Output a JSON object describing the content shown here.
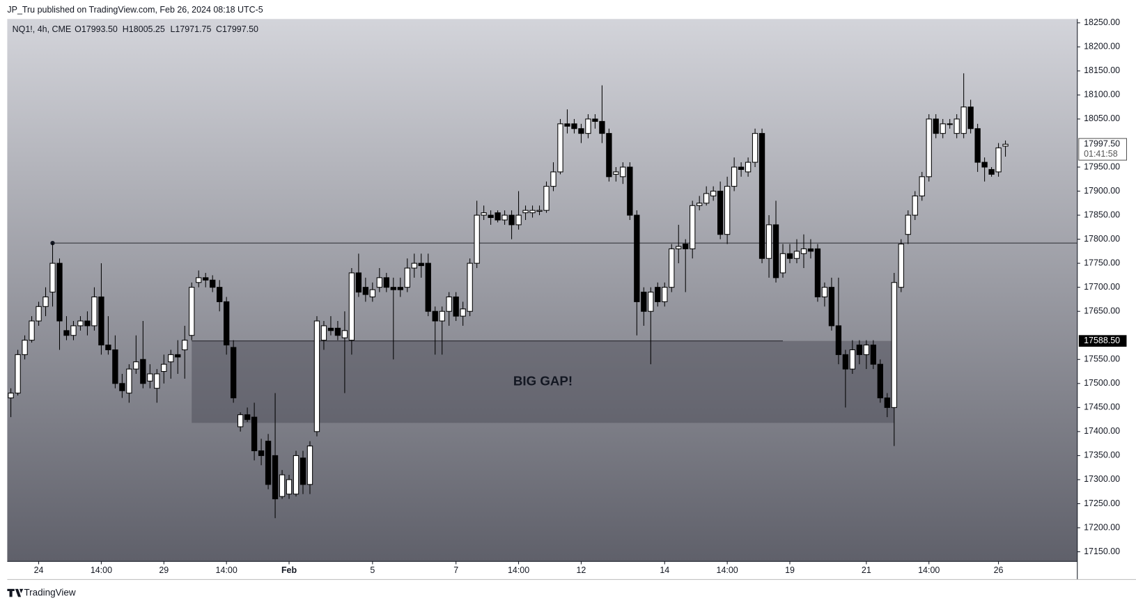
{
  "header": "JP_Tru published on TradingView.com, Feb 26, 2024 08:18 UTC-5",
  "footer": "TradingView",
  "chart_data": {
    "type": "candlestick",
    "legend": {
      "symbol": "NQ1!, 4h, CME",
      "open": {
        "value": 17993.5,
        "label": "O17993.50"
      },
      "high": {
        "value": 18005.25,
        "label": "H18005.25"
      },
      "low": {
        "value": 17971.75,
        "label": "L17971.75"
      },
      "close": {
        "value": 17997.5,
        "label": "C17997.50"
      }
    },
    "ohlc": [
      [
        17470,
        17490,
        17430,
        17480
      ],
      [
        17480,
        17570,
        17475,
        17560
      ],
      [
        17560,
        17600,
        17550,
        17590
      ],
      [
        17590,
        17640,
        17585,
        17630
      ],
      [
        17630,
        17670,
        17620,
        17660
      ],
      [
        17660,
        17700,
        17640,
        17680
      ],
      [
        17690,
        17792,
        17660,
        17750
      ],
      [
        17750,
        17760,
        17570,
        17630
      ],
      [
        17610,
        17640,
        17590,
        17600
      ],
      [
        17600,
        17630,
        17590,
        17620
      ],
      [
        17620,
        17640,
        17610,
        17630
      ],
      [
        17630,
        17650,
        17600,
        17620
      ],
      [
        17620,
        17700,
        17610,
        17680
      ],
      [
        17680,
        17750,
        17560,
        17580
      ],
      [
        17580,
        17640,
        17560,
        17570
      ],
      [
        17570,
        17600,
        17490,
        17500
      ],
      [
        17500,
        17520,
        17470,
        17485
      ],
      [
        17480,
        17540,
        17460,
        17530
      ],
      [
        17530,
        17600,
        17520,
        17545
      ],
      [
        17550,
        17630,
        17490,
        17500
      ],
      [
        17505,
        17540,
        17490,
        17520
      ],
      [
        17490,
        17530,
        17460,
        17520
      ],
      [
        17525,
        17560,
        17500,
        17540
      ],
      [
        17545,
        17570,
        17510,
        17560
      ],
      [
        17560,
        17590,
        17520,
        17555
      ],
      [
        17570,
        17620,
        17510,
        17590
      ],
      [
        17600,
        17710,
        17590,
        17700
      ],
      [
        17710,
        17735,
        17700,
        17720
      ],
      [
        17720,
        17730,
        17700,
        17715
      ],
      [
        17715,
        17725,
        17690,
        17700
      ],
      [
        17700,
        17715,
        17650,
        17670
      ],
      [
        17670,
        17680,
        17560,
        17580
      ],
      [
        17575,
        17590,
        17460,
        17470
      ],
      [
        17410,
        17440,
        17400,
        17435
      ],
      [
        17435,
        17450,
        17420,
        17425
      ],
      [
        17430,
        17460,
        17340,
        17360
      ],
      [
        17360,
        17385,
        17330,
        17350
      ],
      [
        17380,
        17395,
        17280,
        17290
      ],
      [
        17350,
        17480,
        17220,
        17260
      ],
      [
        17265,
        17320,
        17260,
        17310
      ],
      [
        17270,
        17310,
        17260,
        17300
      ],
      [
        17270,
        17360,
        17265,
        17350
      ],
      [
        17345,
        17360,
        17270,
        17290
      ],
      [
        17290,
        17380,
        17270,
        17370
      ],
      [
        17400,
        17640,
        17390,
        17630
      ],
      [
        17590,
        17630,
        17570,
        17620
      ],
      [
        17615,
        17640,
        17600,
        17610
      ],
      [
        17615,
        17630,
        17590,
        17600
      ],
      [
        17595,
        17650,
        17480,
        17610
      ],
      [
        17590,
        17740,
        17560,
        17730
      ],
      [
        17730,
        17770,
        17680,
        17690
      ],
      [
        17700,
        17720,
        17670,
        17685
      ],
      [
        17680,
        17710,
        17670,
        17695
      ],
      [
        17700,
        17740,
        17690,
        17720
      ],
      [
        17720,
        17730,
        17690,
        17700
      ],
      [
        17700,
        17720,
        17550,
        17695
      ],
      [
        17700,
        17720,
        17680,
        17695
      ],
      [
        17700,
        17760,
        17690,
        17740
      ],
      [
        17740,
        17770,
        17720,
        17750
      ],
      [
        17750,
        17770,
        17720,
        17745
      ],
      [
        17750,
        17770,
        17640,
        17650
      ],
      [
        17650,
        17660,
        17560,
        17630
      ],
      [
        17630,
        17660,
        17560,
        17650
      ],
      [
        17650,
        17690,
        17620,
        17680
      ],
      [
        17680,
        17690,
        17630,
        17640
      ],
      [
        17640,
        17670,
        17620,
        17655
      ],
      [
        17650,
        17760,
        17640,
        17750
      ],
      [
        17750,
        17880,
        17740,
        17850
      ],
      [
        17850,
        17870,
        17840,
        17855
      ],
      [
        17850,
        17860,
        17830,
        17845
      ],
      [
        17855,
        17860,
        17835,
        17840
      ],
      [
        17840,
        17860,
        17830,
        17850
      ],
      [
        17850,
        17860,
        17800,
        17830
      ],
      [
        17830,
        17900,
        17820,
        17850
      ],
      [
        17855,
        17870,
        17840,
        17860
      ],
      [
        17855,
        17870,
        17845,
        17860
      ],
      [
        17858,
        17870,
        17850,
        17860
      ],
      [
        17860,
        17920,
        17855,
        17910
      ],
      [
        17910,
        17960,
        17900,
        17940
      ],
      [
        17940,
        18050,
        17935,
        18040
      ],
      [
        18040,
        18070,
        18020,
        18035
      ],
      [
        18040,
        18050,
        18020,
        18030
      ],
      [
        18030,
        18040,
        18000,
        18020
      ],
      [
        18020,
        18060,
        18010,
        18050
      ],
      [
        18050,
        18060,
        18030,
        18045
      ],
      [
        18045,
        18120,
        18000,
        18020
      ],
      [
        18020,
        18030,
        17920,
        17930
      ],
      [
        17935,
        17950,
        17920,
        17940
      ],
      [
        17930,
        17960,
        17915,
        17950
      ],
      [
        17950,
        17960,
        17840,
        17850
      ],
      [
        17850,
        17860,
        17600,
        17670
      ],
      [
        17690,
        17700,
        17620,
        17650
      ],
      [
        17650,
        17700,
        17540,
        17690
      ],
      [
        17700,
        17710,
        17660,
        17670
      ],
      [
        17670,
        17710,
        17660,
        17700
      ],
      [
        17700,
        17790,
        17690,
        17780
      ],
      [
        17780,
        17830,
        17750,
        17785
      ],
      [
        17790,
        17800,
        17690,
        17780
      ],
      [
        17780,
        17880,
        17760,
        17870
      ],
      [
        17870,
        17890,
        17860,
        17875
      ],
      [
        17875,
        17910,
        17870,
        17895
      ],
      [
        17890,
        17910,
        17880,
        17900
      ],
      [
        17900,
        17920,
        17800,
        17810
      ],
      [
        17810,
        17930,
        17790,
        17910
      ],
      [
        17910,
        17970,
        17900,
        17950
      ],
      [
        17950,
        17960,
        17930,
        17945
      ],
      [
        17940,
        17970,
        17930,
        17960
      ],
      [
        17960,
        18030,
        17950,
        18020
      ],
      [
        18020,
        18030,
        17750,
        17760
      ],
      [
        17760,
        17850,
        17720,
        17830
      ],
      [
        17830,
        17880,
        17710,
        17720
      ],
      [
        17730,
        17790,
        17720,
        17770
      ],
      [
        17770,
        17790,
        17750,
        17760
      ],
      [
        17760,
        17800,
        17750,
        17775
      ],
      [
        17770,
        17810,
        17740,
        17780
      ],
      [
        17780,
        17800,
        17760,
        17775
      ],
      [
        17780,
        17790,
        17670,
        17680
      ],
      [
        17680,
        17710,
        17660,
        17700
      ],
      [
        17700,
        17720,
        17610,
        17620
      ],
      [
        17620,
        17720,
        17540,
        17560
      ],
      [
        17560,
        17570,
        17450,
        17530
      ],
      [
        17530,
        17590,
        17520,
        17570
      ],
      [
        17580,
        17590,
        17540,
        17560
      ],
      [
        17560,
        17590,
        17530,
        17580
      ],
      [
        17580,
        17590,
        17530,
        17540
      ],
      [
        17540,
        17550,
        17460,
        17470
      ],
      [
        17470,
        17480,
        17430,
        17450
      ],
      [
        17450,
        17730,
        17370,
        17710
      ],
      [
        17700,
        17800,
        17690,
        17790
      ],
      [
        17810,
        17860,
        17790,
        17850
      ],
      [
        17850,
        17900,
        17840,
        17890
      ],
      [
        17890,
        17940,
        17880,
        17930
      ],
      [
        17930,
        18060,
        17920,
        18050
      ],
      [
        18050,
        18060,
        18010,
        18020
      ],
      [
        18020,
        18050,
        18010,
        18040
      ],
      [
        18040,
        18050,
        18030,
        18040
      ],
      [
        18020,
        18060,
        18010,
        18050
      ],
      [
        18020,
        18145,
        18010,
        18075
      ],
      [
        18075,
        18090,
        18020,
        18030
      ],
      [
        18030,
        18040,
        17940,
        17960
      ],
      [
        17960,
        17970,
        17920,
        17950
      ],
      [
        17945,
        17950,
        17930,
        17935
      ],
      [
        17940,
        18000,
        17930,
        17990
      ],
      [
        17993.5,
        18005.25,
        17971.75,
        17997.5
      ]
    ],
    "xticks": [
      {
        "value": 4,
        "label": "24"
      },
      {
        "value": 13,
        "label": "14:00"
      },
      {
        "value": 22,
        "label": "29"
      },
      {
        "value": 31,
        "label": "14:00"
      },
      {
        "value": 40,
        "label": "Feb"
      },
      {
        "value": 52,
        "label": "5"
      },
      {
        "value": 64,
        "label": "7"
      },
      {
        "value": 73,
        "label": "14:00"
      },
      {
        "value": 82,
        "label": "12"
      },
      {
        "value": 94,
        "label": "14"
      },
      {
        "value": 103,
        "label": "14:00"
      },
      {
        "value": 112,
        "label": "19"
      },
      {
        "value": 123,
        "label": "21"
      },
      {
        "value": 132,
        "label": "14:00"
      },
      {
        "value": 142,
        "label": "26"
      }
    ],
    "ylim": [
      17130,
      18258
    ],
    "yticks": [
      {
        "value": 17150,
        "label": "17150.00"
      },
      {
        "value": 17200,
        "label": "17200.00"
      },
      {
        "value": 17250,
        "label": "17250.00"
      },
      {
        "value": 17300,
        "label": "17300.00"
      },
      {
        "value": 17350,
        "label": "17350.00"
      },
      {
        "value": 17400,
        "label": "17400.00"
      },
      {
        "value": 17450,
        "label": "17450.00"
      },
      {
        "value": 17500,
        "label": "17500.00"
      },
      {
        "value": 17550,
        "label": "17550.00"
      },
      {
        "value": 17650,
        "label": "17650.00"
      },
      {
        "value": 17700,
        "label": "17700.00"
      },
      {
        "value": 17750,
        "label": "17750.00"
      },
      {
        "value": 17800,
        "label": "17800.00"
      },
      {
        "value": 17850,
        "label": "17850.00"
      },
      {
        "value": 17900,
        "label": "17900.00"
      },
      {
        "value": 17950,
        "label": "17950.00"
      },
      {
        "value": 18050,
        "label": "18050.00"
      },
      {
        "value": 18100,
        "label": "18100.00"
      },
      {
        "value": 18150,
        "label": "18150.00"
      },
      {
        "value": 18200,
        "label": "18200.00"
      },
      {
        "value": 18250,
        "label": "18250.00"
      }
    ],
    "hlines": [
      {
        "value": 17792,
        "from": 6
      },
      {
        "value": 17588.5,
        "from": 26,
        "to": 111
      }
    ],
    "zone": {
      "label": "BIG GAP!",
      "top": 17588.5,
      "bottom": 17418,
      "from": 26,
      "to": 127
    },
    "marker_label": {
      "value": 17588.5,
      "label": "17588.50"
    },
    "last_price": {
      "value": 17997.5,
      "label": "17997.50",
      "countdown": "01:41:58"
    },
    "up_color": "#ffffff",
    "down_color": "#000000"
  }
}
